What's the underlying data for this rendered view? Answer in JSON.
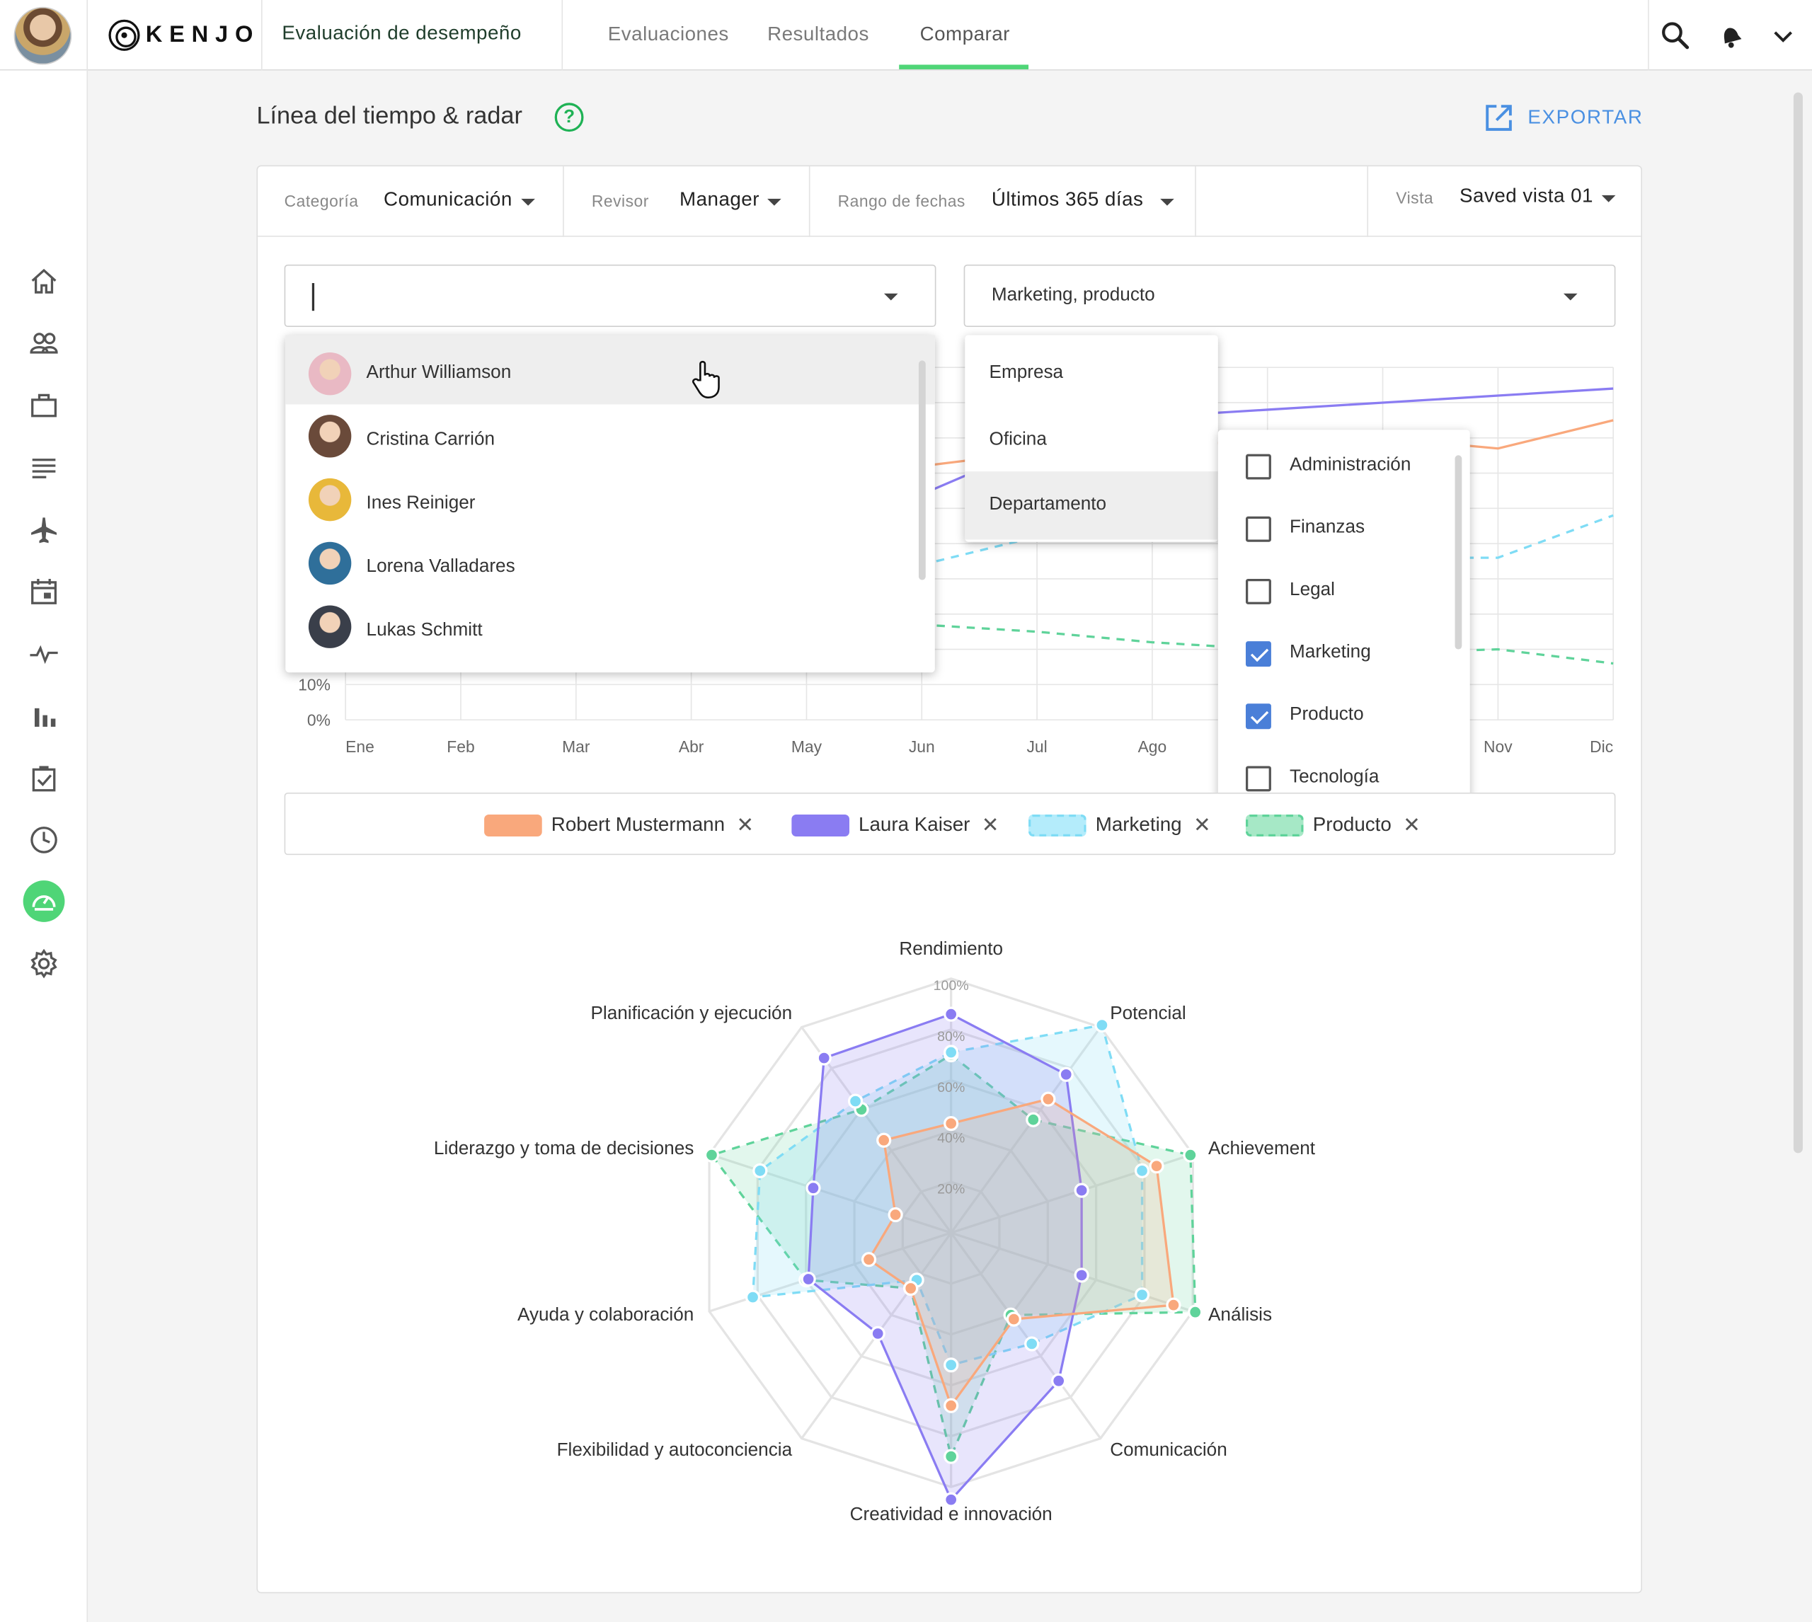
{
  "app": {
    "logo_text": "KENJO",
    "module_title": "Evaluación de desempeño"
  },
  "nav": {
    "tabs": [
      "Evaluaciones",
      "Resultados",
      "Comparar"
    ],
    "active": "Comparar"
  },
  "topbar_icons": [
    "search-icon",
    "bell-icon",
    "chevron-down-icon"
  ],
  "sidebar_icons": [
    "home-icon",
    "people-icon",
    "briefcase-icon",
    "list-icon",
    "plane-icon",
    "calendar-icon",
    "pulse-icon",
    "bar-chart-icon",
    "checklist-icon",
    "clock-icon",
    "performance-icon",
    "settings-icon"
  ],
  "page": {
    "title": "Línea del tiempo & radar",
    "help_label": "?",
    "export_label": "EXPORTAR"
  },
  "filters": {
    "category_label": "Categoría",
    "category_value": "Comunicación",
    "reviewer_label": "Revisor",
    "reviewer_value": "Manager",
    "date_label": "Rango de fechas",
    "date_value": "Últimos 365 días",
    "view_label": "Vista",
    "view_value": "Saved vista 01"
  },
  "people_select": {
    "value": ""
  },
  "group_select": {
    "value": "Marketing, producto"
  },
  "people_list": [
    {
      "name": "Arthur Williamson",
      "avatar": "#e9b9c4"
    },
    {
      "name": "Cristina Carrión",
      "avatar": "#6a4a3a"
    },
    {
      "name": "Ines Reiniger",
      "avatar": "#e8b83a"
    },
    {
      "name": "Lorena Valladares",
      "avatar": "#2f6f9a"
    },
    {
      "name": "Lukas Schmitt",
      "avatar": "#3a3f4a"
    }
  ],
  "group_types": [
    "Empresa",
    "Oficina",
    "Departamento"
  ],
  "departments": [
    {
      "name": "Administración",
      "checked": false
    },
    {
      "name": "Finanzas",
      "checked": false
    },
    {
      "name": "Legal",
      "checked": false
    },
    {
      "name": "Marketing",
      "checked": true
    },
    {
      "name": "Producto",
      "checked": true
    },
    {
      "name": "Tecnología",
      "checked": false
    }
  ],
  "timeline": {
    "y_ticks": [
      "10%",
      "0%"
    ],
    "x_ticks": [
      "Ene",
      "Feb",
      "Mar",
      "Abr",
      "May",
      "Jun",
      "Jul",
      "Ago",
      "Sep",
      "Oct",
      "Nov",
      "Dic"
    ]
  },
  "legend": [
    {
      "name": "Robert Mustermann",
      "color": "#f9a87c",
      "dashed": false
    },
    {
      "name": "Laura Kaiser",
      "color": "#8a7cf2",
      "dashed": false
    },
    {
      "name": "Marketing",
      "color": "#7fdcf5",
      "dashed": true
    },
    {
      "name": "Producto",
      "color": "#5fd39a",
      "dashed": true
    }
  ],
  "chart_data": [
    {
      "type": "line",
      "x": [
        "Ene",
        "Feb",
        "Mar",
        "Abr",
        "May",
        "Jun",
        "Jul",
        "Ago",
        "Sep",
        "Oct",
        "Nov",
        "Dic"
      ],
      "ylim": [
        0,
        100
      ],
      "series": [
        {
          "name": "Robert Mustermann",
          "color": "#f9a87c",
          "x": [
            "Jun",
            "Jul",
            "Ago",
            "Sep",
            "Oct",
            "Nov",
            "Dic"
          ],
          "values": [
            72,
            76,
            78,
            79,
            80,
            77,
            85
          ]
        },
        {
          "name": "Laura Kaiser",
          "color": "#8a7cf2",
          "x": [
            "Jun",
            "Jul",
            "Ago",
            "Sep",
            "Oct",
            "Nov",
            "Dic"
          ],
          "values": [
            64,
            78,
            86,
            88,
            90,
            92,
            94
          ]
        },
        {
          "name": "Marketing",
          "color": "#7fdcf5",
          "x": [
            "Jun",
            "Jul",
            "Ago",
            "Sep",
            "Oct",
            "Nov",
            "Dic"
          ],
          "values": [
            44,
            52,
            56,
            58,
            46,
            46,
            58
          ]
        },
        {
          "name": "Producto",
          "color": "#5fd39a",
          "x": [
            "Jun",
            "Jul",
            "Ago",
            "Sep",
            "Oct",
            "Nov",
            "Dic"
          ],
          "values": [
            27,
            25,
            22,
            20,
            19,
            20,
            16
          ]
        }
      ]
    },
    {
      "type": "radar",
      "axes": [
        "Rendimiento",
        "Potencial",
        "Achievement",
        "Análisis",
        "Comunicación",
        "Creatividad e innovación",
        "Flexibilidad y autoconciencia",
        "Ayuda y colaboración",
        "Liderazgo y toma de decisiones",
        "Planificación y ejecución"
      ],
      "r_ticks": [
        "20%",
        "40%",
        "60%",
        "80%",
        "100%"
      ],
      "rlim": [
        0,
        100
      ],
      "series": [
        {
          "name": "Robert Mustermann",
          "color": "#f9a87c",
          "dashed": false,
          "values": [
            43,
            65,
            85,
            92,
            42,
            68,
            27,
            34,
            23,
            45
          ]
        },
        {
          "name": "Laura Kaiser",
          "color": "#8a7cf2",
          "dashed": false,
          "values": [
            86,
            77,
            54,
            54,
            72,
            105,
            49,
            59,
            57,
            85
          ]
        },
        {
          "name": "Marketing",
          "color": "#7fdcf5",
          "dashed": true,
          "values": [
            71,
            101,
            79,
            79,
            54,
            52,
            23,
            82,
            79,
            64
          ]
        },
        {
          "name": "Producto",
          "color": "#5fd39a",
          "dashed": true,
          "values": [
            70,
            55,
            99,
            101,
            40,
            88,
            27,
            60,
            99,
            60
          ]
        }
      ]
    }
  ]
}
